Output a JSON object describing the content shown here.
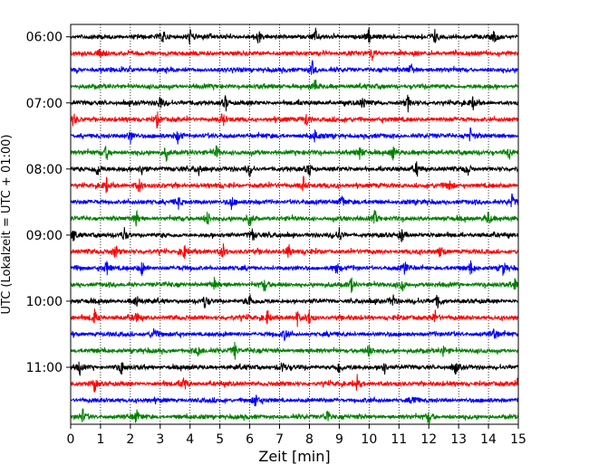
{
  "chart_data": {
    "type": "line",
    "title": "",
    "xlabel": "Zeit  [min]",
    "ylabel": "UTC (Lokalzeit = UTC + 01:00)",
    "xlim": [
      0,
      15
    ],
    "x_ticks": [
      "0",
      "1",
      "2",
      "3",
      "4",
      "5",
      "6",
      "7",
      "8",
      "9",
      "10",
      "11",
      "12",
      "13",
      "14",
      "15"
    ],
    "y_tick_labels": [
      "06:00",
      "07:00",
      "08:00",
      "09:00",
      "10:00",
      "11:00"
    ],
    "y_tick_rows": [
      0,
      4,
      8,
      12,
      16,
      20
    ],
    "grid": "vertical dotted",
    "line_colors": [
      "#000000",
      "#ff0000",
      "#0000ff",
      "#008000"
    ],
    "row_minutes": 15,
    "rows": [
      {
        "start": "06:00",
        "color": "#000000",
        "spikes": [
          3.1,
          4.0,
          6.3,
          8.2,
          10.0,
          12.2,
          14.2
        ]
      },
      {
        "start": "06:15",
        "color": "#ff0000",
        "spikes": [
          1.0,
          10.1
        ]
      },
      {
        "start": "06:30",
        "color": "#0000ff",
        "spikes": [
          8.1,
          11.4
        ]
      },
      {
        "start": "06:45",
        "color": "#008000",
        "spikes": [
          8.2
        ]
      },
      {
        "start": "07:00",
        "color": "#000000",
        "spikes": [
          3.0,
          5.2,
          9.8,
          11.3,
          13.5
        ]
      },
      {
        "start": "07:15",
        "color": "#ff0000",
        "spikes": [
          0.1,
          2.9,
          5.1,
          7.9
        ]
      },
      {
        "start": "07:30",
        "color": "#0000ff",
        "spikes": [
          2.0,
          3.6,
          8.2,
          13.4
        ]
      },
      {
        "start": "07:45",
        "color": "#008000",
        "spikes": [
          1.2,
          3.2,
          4.9,
          9.7,
          10.8,
          14.7
        ]
      },
      {
        "start": "08:00",
        "color": "#000000",
        "spikes": [
          0.9,
          2.4,
          4.3,
          6.0,
          8.0,
          11.6,
          13.3
        ]
      },
      {
        "start": "08:15",
        "color": "#ff0000",
        "spikes": [
          1.2,
          2.3,
          7.8,
          12.7
        ]
      },
      {
        "start": "08:30",
        "color": "#0000ff",
        "spikes": [
          3.6,
          5.4,
          9.1,
          14.8
        ]
      },
      {
        "start": "08:45",
        "color": "#008000",
        "spikes": [
          2.2,
          4.6,
          6.0,
          10.2,
          14.0
        ]
      },
      {
        "start": "09:00",
        "color": "#000000",
        "spikes": [
          0.1,
          1.8,
          6.1,
          9.0,
          11.1
        ]
      },
      {
        "start": "09:15",
        "color": "#ff0000",
        "spikes": [
          1.5,
          3.8,
          5.1,
          7.3,
          12.4
        ]
      },
      {
        "start": "09:30",
        "color": "#0000ff",
        "spikes": [
          1.2,
          2.4,
          8.9,
          11.2,
          13.4,
          14.5
        ]
      },
      {
        "start": "09:45",
        "color": "#008000",
        "spikes": [
          4.8,
          6.5,
          9.4,
          11.1,
          14.9
        ]
      },
      {
        "start": "10:00",
        "color": "#000000",
        "spikes": [
          2.2,
          4.5,
          6.0,
          10.8,
          12.3
        ]
      },
      {
        "start": "10:15",
        "color": "#ff0000",
        "spikes": [
          0.8,
          2.2,
          6.6,
          7.6,
          8.0,
          12.2
        ]
      },
      {
        "start": "10:30",
        "color": "#0000ff",
        "spikes": [
          2.8,
          7.2,
          14.2
        ]
      },
      {
        "start": "10:45",
        "color": "#008000",
        "spikes": [
          4.3,
          5.5,
          10.0,
          12.5
        ]
      },
      {
        "start": "11:00",
        "color": "#000000",
        "spikes": [
          0.3,
          1.7,
          7.1,
          9.0,
          10.5,
          12.9
        ]
      },
      {
        "start": "11:15",
        "color": "#ff0000",
        "spikes": [
          0.8,
          3.8,
          9.6,
          15.0
        ]
      },
      {
        "start": "11:30",
        "color": "#0000ff",
        "spikes": [
          6.2,
          11.5
        ]
      },
      {
        "start": "11:45",
        "color": "#008000",
        "spikes": [
          0.4,
          2.2,
          8.6,
          12.0
        ]
      }
    ]
  }
}
